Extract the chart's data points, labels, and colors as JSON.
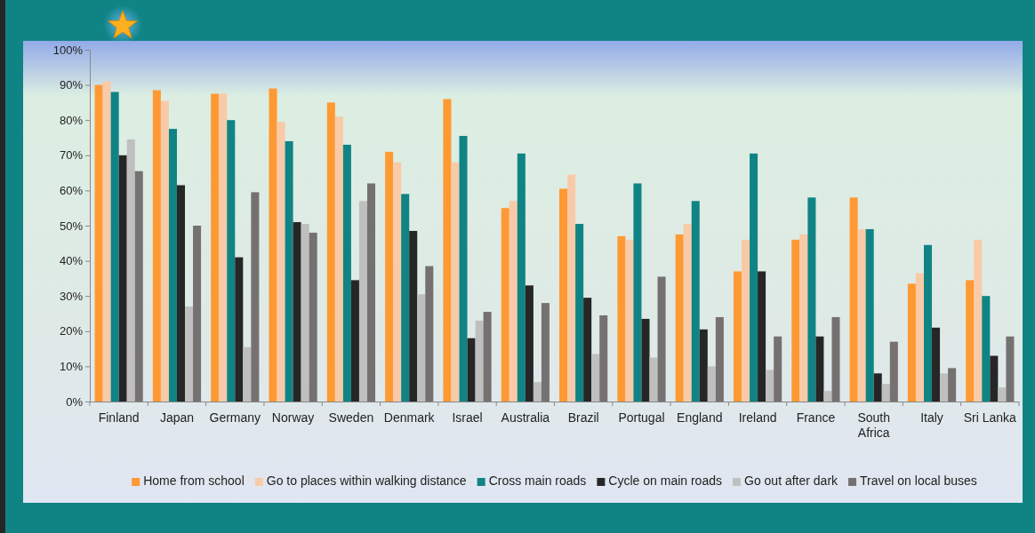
{
  "chart_data": {
    "type": "bar",
    "categories": [
      "Finland",
      "Japan",
      "Germany",
      "Norway",
      "Sweden",
      "Denmark",
      "Israel",
      "Australia",
      "Brazil",
      "Portugal",
      "England",
      "Ireland",
      "France",
      "South Africa",
      "Italy",
      "Sri Lanka"
    ],
    "series": [
      {
        "name": "Home from school",
        "color": "#ff9933",
        "values": [
          90,
          88.5,
          87.5,
          89,
          85,
          71,
          86,
          55,
          60.5,
          47,
          47.5,
          37,
          46,
          58,
          33.5,
          34.5
        ]
      },
      {
        "name": "Go to places within walking distance",
        "color": "#f9caa7",
        "values": [
          91,
          85.5,
          87.5,
          79.5,
          81,
          68,
          68,
          57,
          64.5,
          46,
          50.5,
          46,
          47.5,
          49,
          36.5,
          46
        ]
      },
      {
        "name": "Cross main roads",
        "color": "#108484",
        "values": [
          88,
          77.5,
          80,
          74,
          73,
          59,
          75.5,
          70.5,
          50.5,
          62,
          57,
          70.5,
          58,
          49,
          44.5,
          30
        ]
      },
      {
        "name": "Cycle on main roads",
        "color": "#262626",
        "values": [
          70,
          61.5,
          41,
          51,
          34.5,
          48.5,
          18,
          33,
          29.5,
          23.5,
          20.5,
          37,
          18.5,
          8,
          21,
          13
        ]
      },
      {
        "name": "Go out after dark",
        "color": "#bfbfbf",
        "values": [
          74.5,
          27,
          15.5,
          50.5,
          57,
          30.5,
          23,
          5.5,
          13.5,
          12.5,
          10,
          9,
          3,
          5,
          8,
          4
        ]
      },
      {
        "name": "Travel on local buses",
        "color": "#767171",
        "values": [
          65.5,
          50,
          59.5,
          48,
          62,
          38.5,
          25.5,
          28,
          24.5,
          35.5,
          24,
          18.5,
          24,
          17,
          9.5,
          18.5
        ]
      }
    ],
    "ylim": [
      0,
      100
    ],
    "yticks": [
      {
        "value": 0,
        "label": "0%"
      },
      {
        "value": 10,
        "label": "10%"
      },
      {
        "value": 20,
        "label": "20%"
      },
      {
        "value": 30,
        "label": "30%"
      },
      {
        "value": 40,
        "label": "40%"
      },
      {
        "value": 50,
        "label": "50%"
      },
      {
        "value": 60,
        "label": "60%"
      },
      {
        "value": 70,
        "label": "70%"
      },
      {
        "value": 80,
        "label": "80%"
      },
      {
        "value": 90,
        "label": "90%"
      },
      {
        "value": 100,
        "label": "100%"
      }
    ],
    "legend": "bottom"
  }
}
